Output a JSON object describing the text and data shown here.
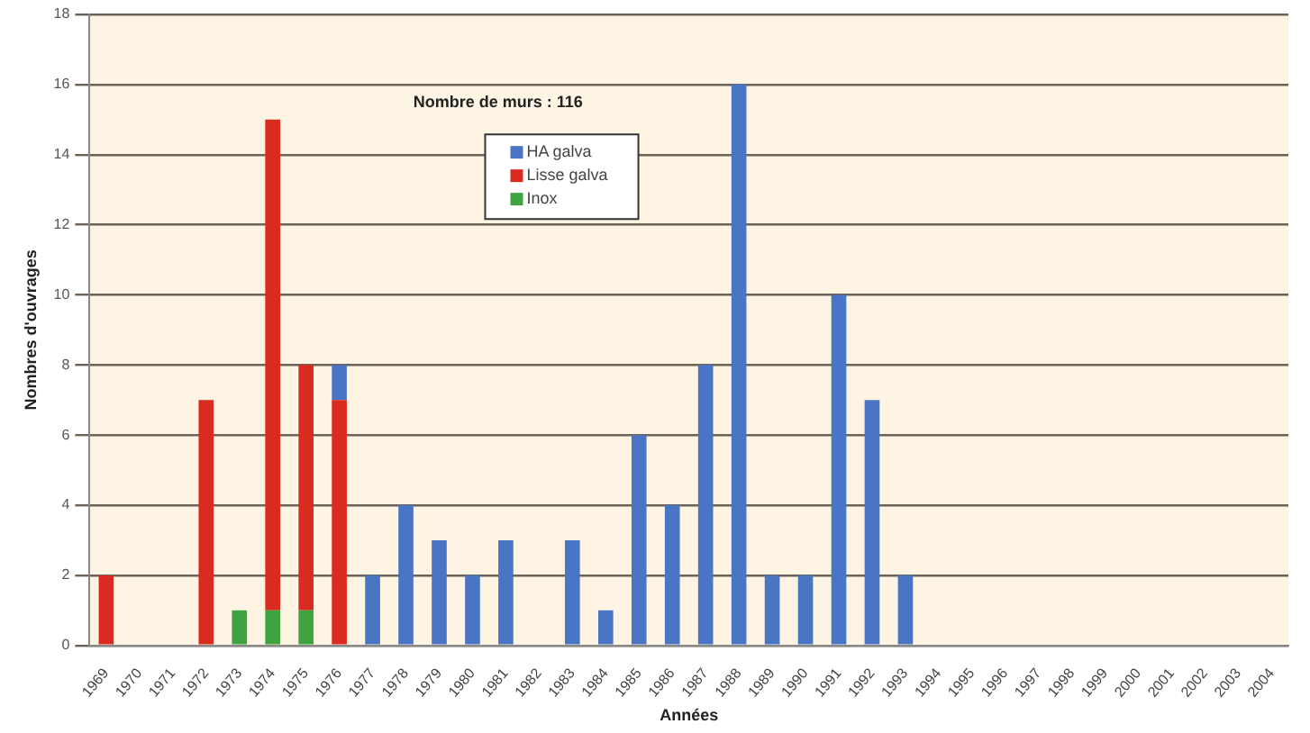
{
  "chart_data": {
    "type": "bar",
    "stacked": true,
    "xlabel": "Années",
    "ylabel": "Nombres d'ouvrages",
    "annotations": [
      "Nombre de murs : 116"
    ],
    "categories": [
      "1969",
      "1970",
      "1971",
      "1972",
      "1973",
      "1974",
      "1975",
      "1976",
      "1977",
      "1978",
      "1979",
      "1980",
      "1981",
      "1982",
      "1983",
      "1984",
      "1985",
      "1986",
      "1987",
      "1988",
      "1989",
      "1990",
      "1991",
      "1992",
      "1993",
      "1994",
      "1995",
      "1996",
      "1997",
      "1998",
      "1999",
      "2000",
      "2001",
      "2002",
      "2003",
      "2004"
    ],
    "series": [
      {
        "name": "Inox",
        "color": "#3fa33f",
        "values": [
          null,
          null,
          null,
          null,
          1,
          1,
          1,
          null,
          null,
          null,
          null,
          null,
          null,
          null,
          null,
          null,
          null,
          null,
          null,
          null,
          null,
          null,
          null,
          null,
          null,
          null,
          null,
          null,
          null,
          null,
          null,
          null,
          null,
          null,
          null,
          null
        ]
      },
      {
        "name": "Lisse galva",
        "color": "#d92b1f",
        "values": [
          2,
          null,
          null,
          7,
          null,
          14,
          7,
          7,
          null,
          null,
          null,
          null,
          null,
          null,
          null,
          null,
          null,
          null,
          null,
          null,
          null,
          null,
          null,
          null,
          null,
          null,
          null,
          null,
          null,
          null,
          null,
          null,
          null,
          null,
          null,
          null
        ]
      },
      {
        "name": "HA galva",
        "color": "#4a74c4",
        "values": [
          null,
          null,
          null,
          null,
          null,
          null,
          null,
          1,
          2,
          4,
          3,
          2,
          3,
          null,
          3,
          1,
          6,
          4,
          8,
          16,
          2,
          2,
          10,
          7,
          2,
          null,
          null,
          null,
          null,
          null,
          null,
          null,
          null,
          null,
          null,
          null
        ]
      }
    ],
    "ylim": [
      0,
      18
    ],
    "yticks": [
      0,
      2,
      4,
      6,
      8,
      10,
      12,
      14,
      16,
      18
    ],
    "grid": "y",
    "legend": "top"
  }
}
